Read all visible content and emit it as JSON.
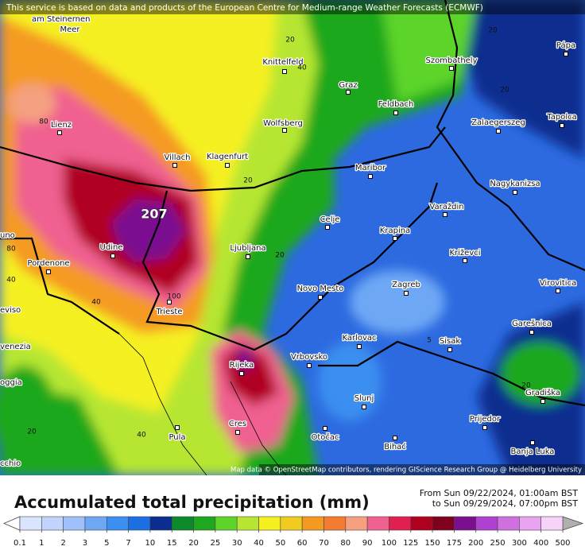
{
  "notice": "This service is based on data and products of the European Centre for Medium-range Weather Forecasts (ECMWF)",
  "cities": [
    "am Steinernen",
    "Meer",
    "Knittelfeld",
    "Graz",
    "Szombathely",
    "Pápa",
    "Lienz",
    "Wolfsberg",
    "Feldbach",
    "Zalaegerszeg",
    "Tapolca",
    "Villach",
    "Klagenfurt",
    "Maribor",
    "Nagykanizsa",
    "Celje",
    "Varaždin",
    "Udine",
    "Pordenone",
    "Ljubljana",
    "Krapina",
    "Križevci",
    "uno",
    "Novo Mesto",
    "Zagreb",
    "Virovitica",
    "eviso",
    "Trieste",
    "Karlovac",
    "Sisak",
    "Garešnica",
    "venezia",
    "Vrbovsko",
    "Rijeka",
    "Gradiška",
    "oggia",
    "Slunj",
    "Prijedor",
    "Cres",
    "Pula",
    "Otočac",
    "Bihać",
    "Banja Luka",
    "cchio"
  ],
  "contour_labels": [
    207,
    20,
    40,
    20,
    20,
    80,
    20,
    80,
    40,
    100,
    40,
    20,
    5,
    40,
    20,
    20
  ],
  "attribution": "Map data © OpenStreetMap contributors, rendering GIScience Research Group @ Heidelberg University",
  "title": "Accumulated total precipitation (mm)",
  "period_from": "From Sun 09/22/2024, 01:00am BST",
  "period_to": "to Sun 09/29/2024, 07:00pm BST",
  "legend": {
    "levels": [
      0.1,
      1,
      2,
      3,
      5,
      7,
      10,
      15,
      20,
      25,
      30,
      40,
      50,
      60,
      70,
      80,
      90,
      100,
      125,
      150,
      175,
      200,
      250,
      300,
      400,
      500
    ],
    "colors": [
      "#dbe4fd",
      "#c2d3fc",
      "#9fc0fa",
      "#6ea8f5",
      "#3b8ff0",
      "#1c6fe3",
      "#0a2d8f",
      "#0a8a2a",
      "#1fa81f",
      "#5cd42a",
      "#b6e632",
      "#f5f020",
      "#f0cc20",
      "#f59a20",
      "#f47c30",
      "#f5a080",
      "#f06090",
      "#e02050",
      "#b00020",
      "#800020",
      "#7a1090",
      "#b040d0",
      "#d070e0",
      "#e8a4f0",
      "#f6d4fa"
    ],
    "under_color": "#ffffff",
    "over_color": "#b0b0b0"
  }
}
